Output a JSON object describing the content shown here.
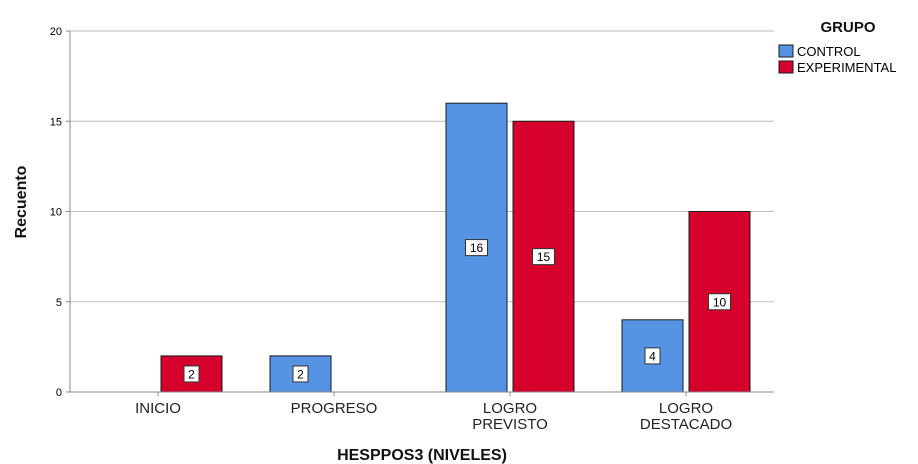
{
  "chart_data": {
    "type": "bar",
    "categories": [
      [
        "INICIO"
      ],
      [
        "PROGRESO"
      ],
      [
        "LOGRO",
        "PREVISTO"
      ],
      [
        "LOGRO",
        "DESTACADO"
      ]
    ],
    "series": [
      {
        "name": "CONTROL",
        "color": "#5694e3",
        "values": [
          0,
          2,
          16,
          4
        ]
      },
      {
        "name": "EXPERIMENTAL",
        "color": "#d5002b",
        "values": [
          2,
          0,
          15,
          10
        ]
      }
    ],
    "xlabel": "HESPPOS3 (NIVELES)",
    "ylabel": "Recuento",
    "ylim": [
      0,
      20
    ],
    "yticks": [
      0,
      5,
      10,
      15,
      20
    ],
    "grid": true,
    "legend": {
      "title": "GRUPO",
      "position": "top-right"
    }
  }
}
